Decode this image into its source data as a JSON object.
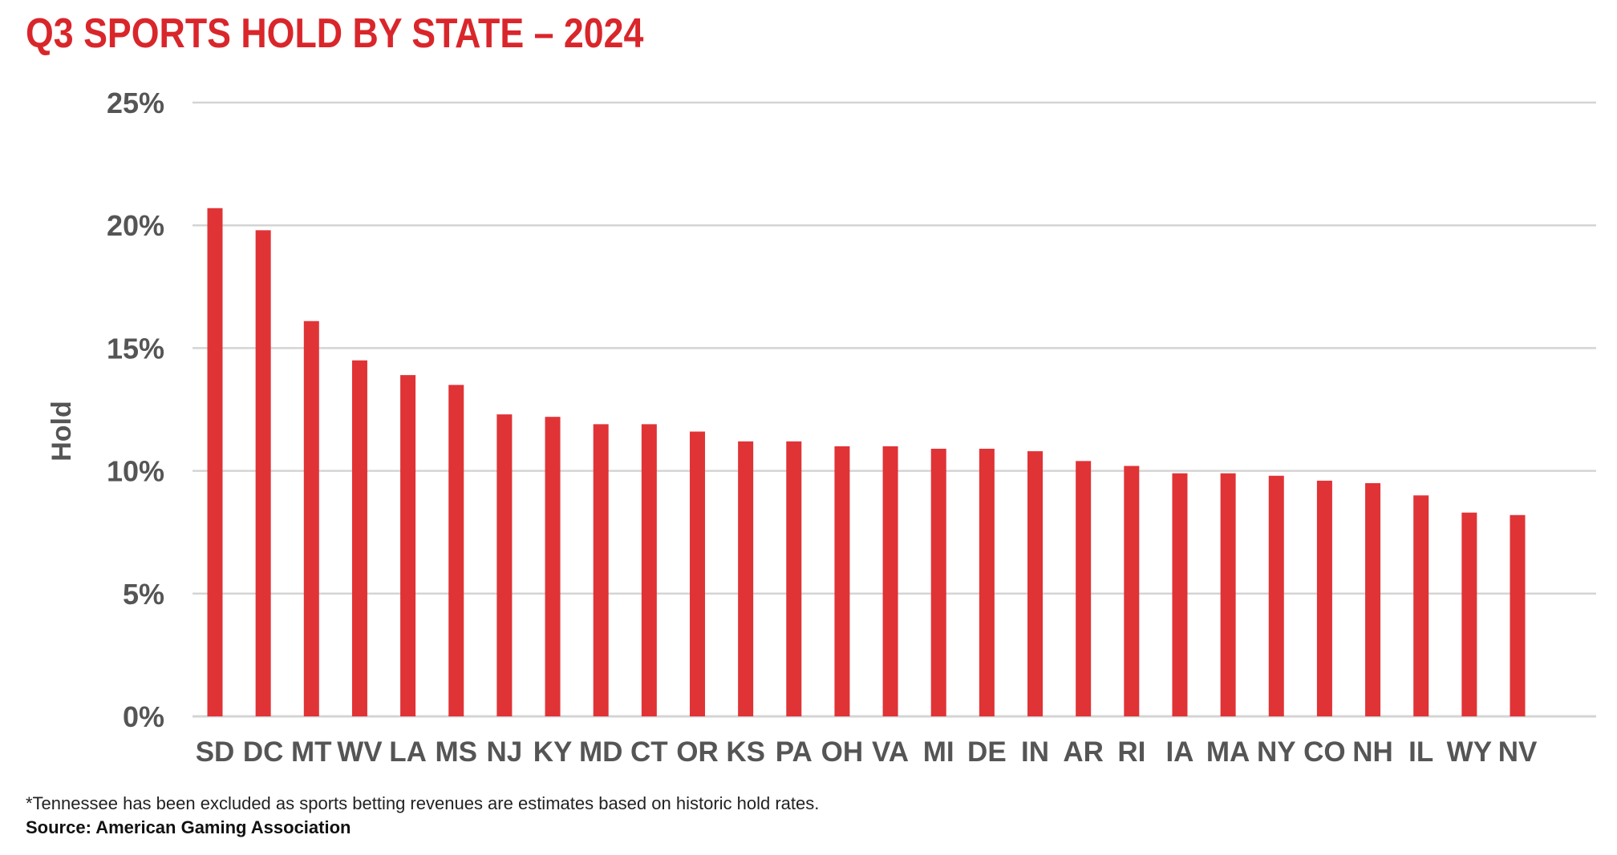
{
  "chart_data": {
    "type": "bar",
    "title": "Q3 SPORTS HOLD BY STATE – 2024",
    "xlabel": "",
    "ylabel": "Hold",
    "ylim": [
      0,
      25
    ],
    "yticks": [
      "0%",
      "5%",
      "10%",
      "15%",
      "20%",
      "25%"
    ],
    "grid": true,
    "categories": [
      "SD",
      "DC",
      "MT",
      "WV",
      "LA",
      "MS",
      "NJ",
      "KY",
      "MD",
      "CT",
      "OR",
      "KS",
      "PA",
      "OH",
      "VA",
      "MI",
      "DE",
      "IN",
      "AR",
      "RI",
      "IA",
      "MA",
      "NY",
      "CO",
      "NH",
      "IL",
      "WY",
      "NV"
    ],
    "values": [
      20.7,
      19.8,
      16.1,
      14.5,
      13.9,
      13.5,
      12.3,
      12.2,
      11.9,
      11.9,
      11.6,
      11.2,
      11.2,
      11.0,
      11.0,
      10.9,
      10.9,
      10.8,
      10.4,
      10.2,
      9.9,
      9.9,
      9.8,
      9.6,
      9.5,
      9.0,
      8.3,
      8.2
    ],
    "bar_color": "#e03336",
    "grid_color": "#d4d4d4",
    "footnote": "*Tennessee has been excluded as sports betting revenues are estimates based on historic hold rates.",
    "source": "Source: American Gaming Association"
  }
}
